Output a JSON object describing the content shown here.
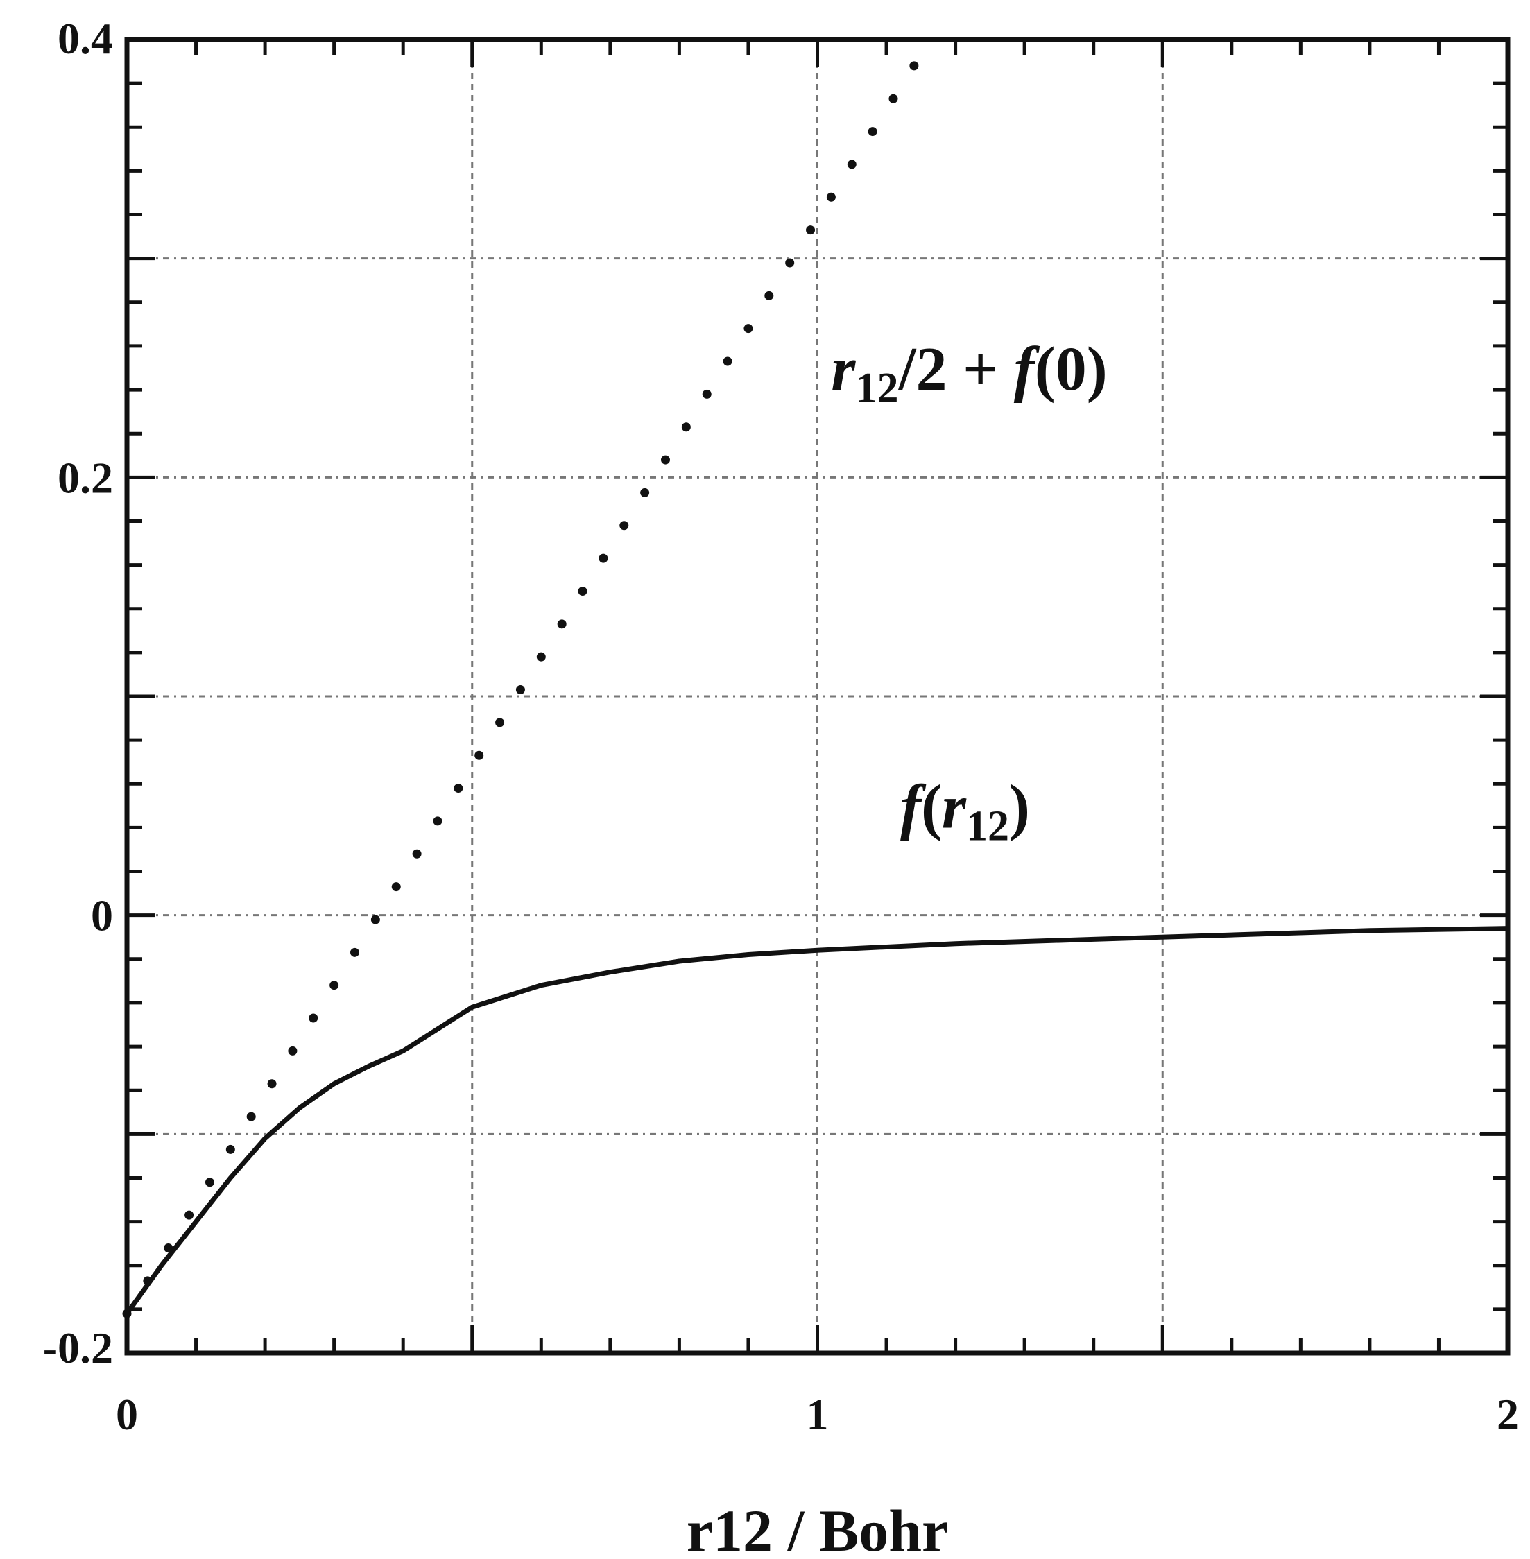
{
  "chart_data": {
    "type": "line",
    "xlabel": "r12 / Bohr",
    "ylabel": "",
    "xlim": [
      0,
      2
    ],
    "ylim": [
      -0.2,
      0.4
    ],
    "x_ticks": [
      0,
      1,
      2
    ],
    "x_tick_labels": [
      "0",
      "1",
      "2"
    ],
    "y_ticks": [
      -0.2,
      0,
      0.2,
      0.4
    ],
    "y_tick_labels": [
      "-0.2",
      "0",
      "0.2",
      "0.4"
    ],
    "x_minor_step": 0.1,
    "y_minor_step": 0.02,
    "x_grid": [
      0.5,
      1,
      1.5
    ],
    "y_grid": [
      -0.1,
      0,
      0.1,
      0.2,
      0.3
    ],
    "grid": true,
    "series": [
      {
        "style": "dotted",
        "color": "#111111",
        "x": [
          0.0,
          0.03,
          0.06,
          0.09,
          0.12,
          0.15,
          0.18,
          0.21,
          0.24,
          0.27,
          0.3,
          0.33,
          0.36,
          0.39,
          0.42,
          0.45,
          0.48,
          0.51,
          0.54,
          0.57,
          0.6,
          0.63,
          0.66,
          0.69,
          0.72,
          0.75,
          0.78,
          0.81,
          0.84,
          0.87,
          0.9,
          0.93,
          0.96,
          0.99,
          1.02,
          1.05,
          1.08,
          1.11,
          1.14
        ],
        "y": [
          -0.182,
          -0.167,
          -0.152,
          -0.137,
          -0.122,
          -0.107,
          -0.092,
          -0.077,
          -0.062,
          -0.047,
          -0.032,
          -0.017,
          -0.002,
          0.013,
          0.028,
          0.043,
          0.058,
          0.073,
          0.088,
          0.103,
          0.118,
          0.133,
          0.148,
          0.163,
          0.178,
          0.193,
          0.208,
          0.223,
          0.238,
          0.253,
          0.268,
          0.283,
          0.298,
          0.313,
          0.328,
          0.343,
          0.358,
          0.373,
          0.388
        ]
      },
      {
        "style": "solid",
        "color": "#111111",
        "x": [
          0.0,
          0.05,
          0.1,
          0.15,
          0.2,
          0.25,
          0.3,
          0.35,
          0.4,
          0.5,
          0.6,
          0.7,
          0.8,
          0.9,
          1.0,
          1.2,
          1.4,
          1.6,
          1.8,
          2.0
        ],
        "y": [
          -0.182,
          -0.16,
          -0.14,
          -0.12,
          -0.102,
          -0.088,
          -0.077,
          -0.069,
          -0.062,
          -0.042,
          -0.032,
          -0.026,
          -0.021,
          -0.018,
          -0.016,
          -0.013,
          -0.011,
          -0.009,
          -0.007,
          -0.006
        ]
      }
    ],
    "annotations": [
      {
        "x": 1.02,
        "y": 0.24,
        "parts": [
          {
            "t": "r",
            "style": "italic"
          },
          {
            "t": "12",
            "style": "sub"
          },
          {
            "t": "/2 + ",
            "style": "normal"
          },
          {
            "t": "f",
            "style": "italic"
          },
          {
            "t": "(0)",
            "style": "normal"
          }
        ]
      },
      {
        "x": 1.12,
        "y": 0.04,
        "parts": [
          {
            "t": "f",
            "style": "italic"
          },
          {
            "t": "(",
            "style": "normal"
          },
          {
            "t": "r",
            "style": "italic"
          },
          {
            "t": "12",
            "style": "sub"
          },
          {
            "t": ")",
            "style": "normal"
          }
        ]
      }
    ]
  }
}
